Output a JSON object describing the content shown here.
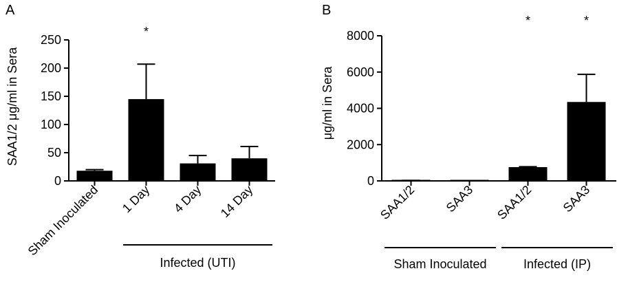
{
  "chart_data": [
    {
      "panel": "A",
      "type": "bar",
      "ylabel": "SAA1/2 μg/ml in Sera",
      "ylim": [
        0,
        250
      ],
      "yticks": [
        0,
        50,
        100,
        150,
        200,
        250
      ],
      "categories": [
        "Sham Inoculated",
        "1 Day",
        "4 Day",
        "14 Day"
      ],
      "values": [
        18,
        145,
        31,
        40
      ],
      "error_upper": [
        20,
        207,
        45,
        61
      ],
      "significance": [
        "",
        "*",
        "",
        ""
      ],
      "groups": [
        {
          "label": "Infected (UTI)",
          "from": 1,
          "to": 3
        }
      ],
      "bar_color": "#000000"
    },
    {
      "panel": "B",
      "type": "bar",
      "ylabel": "μg/ml in Sera",
      "ylim": [
        0,
        8000
      ],
      "yticks": [
        0,
        2000,
        4000,
        6000,
        8000
      ],
      "categories": [
        "SAA1/2",
        "SAA3",
        "SAA1/2",
        "SAA3"
      ],
      "values": [
        20,
        10,
        760,
        4350
      ],
      "error_upper": [
        30,
        15,
        780,
        5870
      ],
      "significance": [
        "",
        "",
        "*",
        "*"
      ],
      "groups": [
        {
          "label": "Sham Inoculated",
          "from": 0,
          "to": 1
        },
        {
          "label": "Infected (IP)",
          "from": 2,
          "to": 3
        }
      ],
      "bar_color": "#000000"
    }
  ]
}
